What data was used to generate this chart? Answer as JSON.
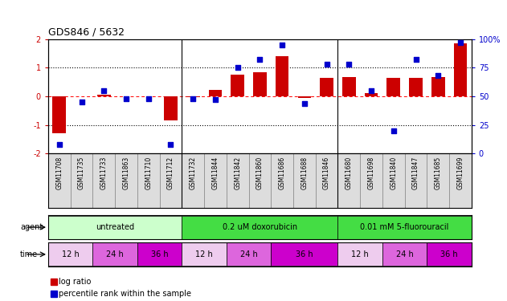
{
  "title": "GDS846 / 5632",
  "samples": [
    "GSM11708",
    "GSM11735",
    "GSM11733",
    "GSM11863",
    "GSM11710",
    "GSM11712",
    "GSM11732",
    "GSM11844",
    "GSM11842",
    "GSM11860",
    "GSM11686",
    "GSM11688",
    "GSM11846",
    "GSM11680",
    "GSM11698",
    "GSM11840",
    "GSM11847",
    "GSM11685",
    "GSM11699"
  ],
  "log_ratio": [
    -1.3,
    0.0,
    0.05,
    0.0,
    0.0,
    -0.85,
    -0.02,
    0.22,
    0.75,
    0.85,
    1.4,
    -0.05,
    0.65,
    0.68,
    0.12,
    0.65,
    0.65,
    0.68,
    1.85
  ],
  "percentile": [
    8,
    45,
    55,
    48,
    48,
    8,
    48,
    47,
    75,
    82,
    95,
    44,
    78,
    78,
    55,
    20,
    82,
    68,
    97
  ],
  "bar_color": "#cc0000",
  "dot_color": "#0000cc",
  "ylim_left": [
    -2,
    2
  ],
  "ylim_right": [
    0,
    100
  ],
  "yticks_left": [
    -2,
    -1,
    0,
    1,
    2
  ],
  "yticks_right": [
    0,
    25,
    50,
    75,
    100
  ],
  "ytick_labels_right": [
    "0",
    "25",
    "50",
    "75",
    "100%"
  ],
  "agents": [
    {
      "label": "untreated",
      "start": 0,
      "end": 6,
      "color": "#ccffcc"
    },
    {
      "label": "0.2 uM doxorubicin",
      "start": 6,
      "end": 13,
      "color": "#44dd44"
    },
    {
      "label": "0.01 mM 5-fluorouracil",
      "start": 13,
      "end": 19,
      "color": "#44dd44"
    }
  ],
  "times": [
    {
      "label": "12 h",
      "start": 0,
      "end": 2,
      "color": "#eeccee"
    },
    {
      "label": "24 h",
      "start": 2,
      "end": 4,
      "color": "#dd66dd"
    },
    {
      "label": "36 h",
      "start": 4,
      "end": 6,
      "color": "#cc00cc"
    },
    {
      "label": "12 h",
      "start": 6,
      "end": 8,
      "color": "#eeccee"
    },
    {
      "label": "24 h",
      "start": 8,
      "end": 10,
      "color": "#dd66dd"
    },
    {
      "label": "36 h",
      "start": 10,
      "end": 13,
      "color": "#cc00cc"
    },
    {
      "label": "12 h",
      "start": 13,
      "end": 15,
      "color": "#eeccee"
    },
    {
      "label": "24 h",
      "start": 15,
      "end": 17,
      "color": "#dd66dd"
    },
    {
      "label": "36 h",
      "start": 17,
      "end": 19,
      "color": "#cc00cc"
    }
  ],
  "legend_items": [
    {
      "label": "log ratio",
      "color": "#cc0000"
    },
    {
      "label": "percentile rank within the sample",
      "color": "#0000cc"
    }
  ],
  "background_color": "#ffffff",
  "xtick_bg": "#dddddd",
  "group_sep": [
    5.5,
    12.5
  ]
}
